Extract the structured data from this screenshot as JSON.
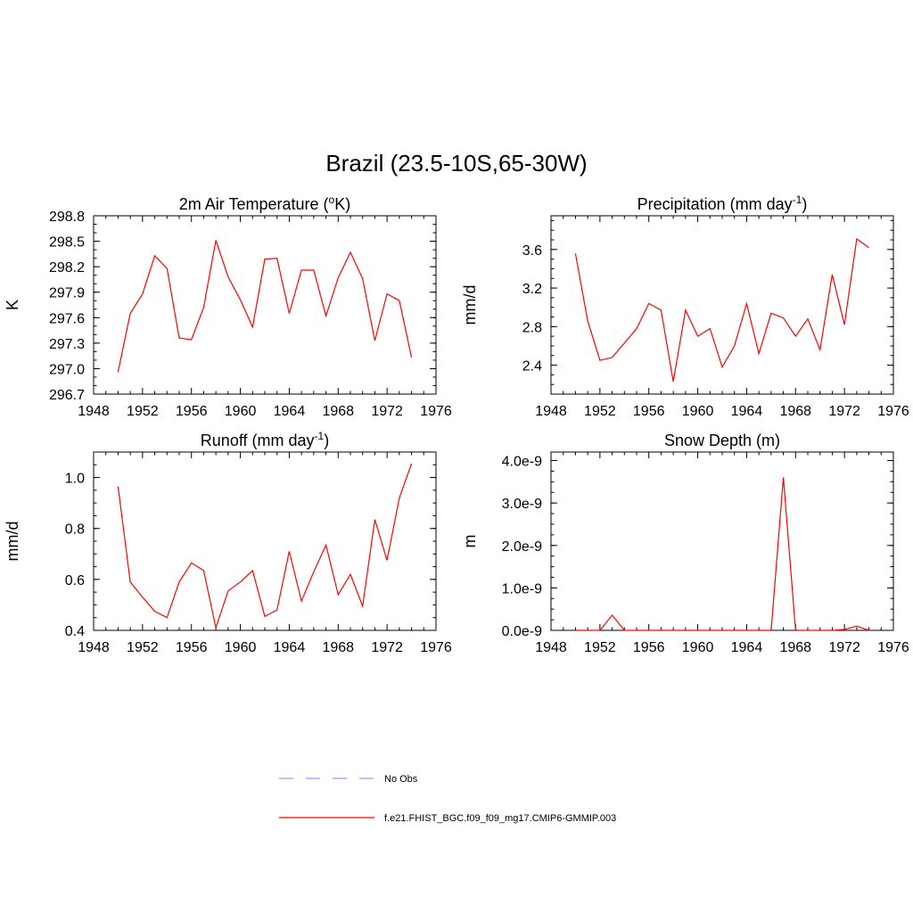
{
  "figure": {
    "title": "Brazil (23.5-10S,65-30W)"
  },
  "legend": {
    "items": [
      {
        "label": "No Obs",
        "color": "#9999ff",
        "dash": true
      },
      {
        "label": "f.e21.FHIST_BGC.f09_f09_mg17.CMIP6-GMMIP.003",
        "color": "#ff0000",
        "dash": false
      }
    ]
  },
  "chart_data": [
    {
      "type": "line",
      "title": "2m Air Temperature (",
      "title_sup": "o",
      "title_after": "K)",
      "ylabel": "K",
      "xlim": [
        1948,
        1976
      ],
      "ylim": [
        296.7,
        298.8
      ],
      "xticks": [
        1948,
        1952,
        1956,
        1960,
        1964,
        1968,
        1972,
        1976
      ],
      "yticks": [
        "296.7",
        "297.0",
        "297.3",
        "297.6",
        "297.9",
        "298.2",
        "298.5",
        "298.8"
      ],
      "series": [
        {
          "color": "#ff0000",
          "x": [
            1950,
            1951,
            1952,
            1953,
            1954,
            1955,
            1956,
            1957,
            1958,
            1959,
            1960,
            1961,
            1962,
            1963,
            1964,
            1965,
            1966,
            1967,
            1968,
            1969,
            1970,
            1971,
            1972,
            1973,
            1974
          ],
          "values": [
            296.96,
            297.65,
            297.88,
            298.33,
            298.18,
            297.36,
            297.34,
            297.72,
            298.51,
            298.08,
            297.81,
            297.49,
            298.29,
            298.3,
            297.65,
            298.16,
            298.16,
            297.62,
            298.07,
            298.37,
            298.06,
            297.33,
            297.88,
            297.8,
            297.13
          ]
        }
      ]
    },
    {
      "type": "line",
      "title": "Precipitation (mm day",
      "title_sup": "-1",
      "title_after": ")",
      "ylabel": "mm/d",
      "xlim": [
        1948,
        1976
      ],
      "ylim": [
        2.1,
        3.95
      ],
      "xticks": [
        1948,
        1952,
        1956,
        1960,
        1964,
        1968,
        1972,
        1976
      ],
      "yticks": [
        "2.4",
        "2.8",
        "3.2",
        "3.6"
      ],
      "series": [
        {
          "color": "#ff0000",
          "x": [
            1950,
            1951,
            1952,
            1953,
            1954,
            1955,
            1956,
            1957,
            1958,
            1959,
            1960,
            1961,
            1962,
            1963,
            1964,
            1965,
            1966,
            1967,
            1968,
            1969,
            1970,
            1971,
            1972,
            1973,
            1974
          ],
          "values": [
            3.56,
            2.86,
            2.45,
            2.48,
            2.63,
            2.78,
            3.04,
            2.97,
            2.23,
            2.97,
            2.7,
            2.78,
            2.38,
            2.6,
            3.04,
            2.52,
            2.94,
            2.89,
            2.7,
            2.88,
            2.56,
            3.34,
            2.82,
            3.71,
            3.62
          ]
        }
      ]
    },
    {
      "type": "line",
      "title": "Runoff (mm day",
      "title_sup": "-1",
      "title_after": ")",
      "ylabel": "mm/d",
      "xlim": [
        1948,
        1976
      ],
      "ylim": [
        0.4,
        1.1
      ],
      "xticks": [
        1948,
        1952,
        1956,
        1960,
        1964,
        1968,
        1972,
        1976
      ],
      "yticks": [
        "0.4",
        "0.6",
        "0.8",
        "1.0"
      ],
      "series": [
        {
          "color": "#ff0000",
          "x": [
            1950,
            1951,
            1952,
            1953,
            1954,
            1955,
            1956,
            1957,
            1958,
            1959,
            1960,
            1961,
            1962,
            1963,
            1964,
            1965,
            1966,
            1967,
            1968,
            1969,
            1970,
            1971,
            1972,
            1973,
            1974
          ],
          "values": [
            0.965,
            0.59,
            0.53,
            0.475,
            0.45,
            0.59,
            0.665,
            0.635,
            0.41,
            0.555,
            0.59,
            0.635,
            0.455,
            0.48,
            0.71,
            0.515,
            0.63,
            0.735,
            0.54,
            0.62,
            0.495,
            0.835,
            0.675,
            0.92,
            1.055
          ]
        }
      ]
    },
    {
      "type": "line",
      "title": "Snow Depth (m)",
      "title_sup": "",
      "title_after": "",
      "ylabel": "m",
      "xlim": [
        1948,
        1976
      ],
      "ylim": [
        0,
        4.2e-09
      ],
      "xticks": [
        1948,
        1952,
        1956,
        1960,
        1964,
        1968,
        1972,
        1976
      ],
      "yticks": [
        "0.0e-9",
        "1.0e-9",
        "2.0e-9",
        "3.0e-9",
        "4.0e-9"
      ],
      "series": [
        {
          "color": "#ff0000",
          "x": [
            1950,
            1951,
            1952,
            1953,
            1954,
            1955,
            1956,
            1957,
            1958,
            1959,
            1960,
            1961,
            1962,
            1963,
            1964,
            1965,
            1966,
            1967,
            1968,
            1969,
            1970,
            1971,
            1972,
            1973,
            1974
          ],
          "values": [
            0,
            0,
            0,
            3.6e-10,
            0,
            0,
            0,
            0,
            0,
            0,
            0,
            0,
            0,
            0,
            0,
            0,
            0,
            3.6e-09,
            0,
            0,
            0,
            0,
            2e-11,
            1e-10,
            0
          ]
        }
      ]
    }
  ]
}
